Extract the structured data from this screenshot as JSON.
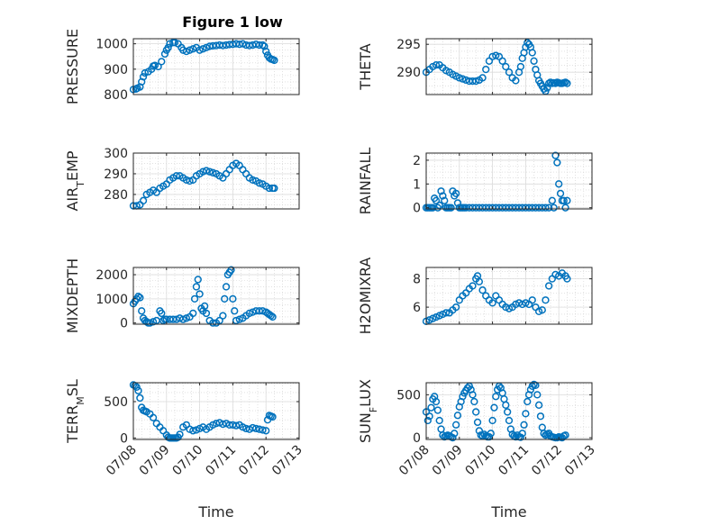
{
  "figure": {
    "title": "Figure 1 low"
  },
  "chart_data": [
    {
      "type": "scatter",
      "ylabel": "PRESSURE",
      "xlabel": "",
      "ylim": [
        800,
        1020
      ],
      "yticks": [
        800,
        900,
        1000
      ],
      "xlim": [
        0,
        5
      ],
      "xticks": [
        0,
        1,
        2,
        3,
        4,
        5
      ],
      "grid": true,
      "color": "#0072BD",
      "marker": "circle-open",
      "x": [
        0.0,
        0.08,
        0.12,
        0.2,
        0.25,
        0.3,
        0.35,
        0.45,
        0.55,
        0.6,
        0.65,
        0.75,
        0.85,
        0.95,
        1.0,
        1.05,
        1.1,
        1.2,
        1.25,
        1.35,
        1.45,
        1.5,
        1.6,
        1.7,
        1.8,
        1.9,
        2.0,
        2.1,
        2.2,
        2.3,
        2.4,
        2.5,
        2.6,
        2.7,
        2.8,
        2.9,
        3.0,
        3.1,
        3.2,
        3.3,
        3.4,
        3.5,
        3.6,
        3.7,
        3.8,
        3.9,
        3.95,
        4.0,
        4.05,
        4.1,
        4.15,
        4.2,
        4.25
      ],
      "y": [
        820,
        822,
        825,
        830,
        850,
        870,
        885,
        890,
        900,
        912,
        915,
        910,
        930,
        960,
        975,
        985,
        1000,
        1005,
        1005,
        1000,
        985,
        975,
        970,
        975,
        980,
        985,
        975,
        980,
        985,
        990,
        992,
        993,
        995,
        993,
        995,
        997,
        998,
        1000,
        998,
        1000,
        995,
        993,
        995,
        998,
        995,
        995,
        990,
        970,
        955,
        945,
        940,
        938,
        935
      ]
    },
    {
      "type": "scatter",
      "ylabel": "THETA",
      "xlabel": "",
      "ylim": [
        286,
        296
      ],
      "yticks": [
        290,
        295
      ],
      "xlim": [
        0,
        5
      ],
      "xticks": [
        0,
        1,
        2,
        3,
        4,
        5
      ],
      "grid": true,
      "color": "#0072BD",
      "marker": "circle-open",
      "x": [
        0.0,
        0.1,
        0.2,
        0.3,
        0.4,
        0.5,
        0.6,
        0.7,
        0.8,
        0.9,
        1.0,
        1.1,
        1.2,
        1.3,
        1.4,
        1.5,
        1.6,
        1.7,
        1.8,
        1.9,
        2.0,
        2.1,
        2.2,
        2.3,
        2.4,
        2.5,
        2.6,
        2.7,
        2.8,
        2.85,
        2.9,
        2.95,
        3.0,
        3.05,
        3.1,
        3.15,
        3.2,
        3.25,
        3.3,
        3.35,
        3.4,
        3.45,
        3.5,
        3.55,
        3.6,
        3.65,
        3.7,
        3.75,
        3.8,
        3.85,
        3.9,
        3.95,
        4.0,
        4.05,
        4.1,
        4.15,
        4.2,
        4.25
      ],
      "y": [
        290,
        290.5,
        291,
        291.3,
        291.3,
        290.8,
        290.3,
        290,
        289.6,
        289.3,
        289,
        288.8,
        288.6,
        288.4,
        288.4,
        288.4,
        288.6,
        289,
        290.5,
        292,
        292.8,
        293,
        292.8,
        292,
        291,
        290,
        289,
        288.5,
        290,
        291,
        292.5,
        293.5,
        294.5,
        295.3,
        295,
        294.5,
        293.5,
        292,
        290.5,
        289.5,
        288.5,
        288,
        287.5,
        287,
        286.6,
        287.2,
        288,
        288.2,
        288,
        288.1,
        288,
        288.2,
        288.1,
        288.0,
        288.0,
        288.1,
        288.2,
        288.0
      ]
    },
    {
      "type": "scatter",
      "ylabel": "AIR_TEMP",
      "xlabel": "",
      "ylim": [
        273,
        300
      ],
      "yticks": [
        280,
        290,
        300
      ],
      "xlim": [
        0,
        5
      ],
      "xticks": [
        0,
        1,
        2,
        3,
        4,
        5
      ],
      "grid": true,
      "color": "#0072BD",
      "marker": "circle-open",
      "x": [
        0.0,
        0.1,
        0.2,
        0.3,
        0.4,
        0.5,
        0.6,
        0.7,
        0.8,
        0.9,
        1.0,
        1.1,
        1.2,
        1.3,
        1.4,
        1.5,
        1.6,
        1.7,
        1.8,
        1.9,
        2.0,
        2.1,
        2.2,
        2.3,
        2.4,
        2.5,
        2.6,
        2.7,
        2.8,
        2.9,
        3.0,
        3.1,
        3.2,
        3.3,
        3.4,
        3.5,
        3.6,
        3.7,
        3.8,
        3.9,
        4.0,
        4.1,
        4.2,
        4.25
      ],
      "y": [
        274.5,
        274.5,
        275,
        277,
        280,
        281,
        282,
        281,
        283,
        284,
        285,
        287,
        288,
        289,
        289,
        288,
        287,
        286.5,
        287,
        289,
        290,
        291,
        291.5,
        291,
        290.5,
        290,
        289,
        288,
        290,
        292,
        294,
        295,
        294,
        292,
        290,
        288,
        287,
        286.5,
        285.5,
        285,
        284,
        283,
        283,
        283
      ]
    },
    {
      "type": "scatter",
      "ylabel": "RAINFALL",
      "xlabel": "",
      "ylim": [
        -0.05,
        2.3
      ],
      "yticks": [
        0,
        1,
        2
      ],
      "xlim": [
        0,
        5
      ],
      "xticks": [
        0,
        1,
        2,
        3,
        4,
        5
      ],
      "grid": true,
      "color": "#0072BD",
      "marker": "circle-open",
      "x": [
        0.0,
        0.05,
        0.1,
        0.15,
        0.2,
        0.25,
        0.3,
        0.35,
        0.4,
        0.45,
        0.5,
        0.55,
        0.6,
        0.65,
        0.7,
        0.75,
        0.8,
        0.85,
        0.9,
        0.95,
        1.0,
        1.05,
        1.1,
        1.15,
        1.2,
        1.3,
        1.4,
        1.5,
        1.6,
        1.7,
        1.8,
        1.9,
        2.0,
        2.1,
        2.2,
        2.3,
        2.4,
        2.5,
        2.6,
        2.7,
        2.8,
        2.9,
        3.0,
        3.1,
        3.2,
        3.3,
        3.4,
        3.5,
        3.6,
        3.7,
        3.8,
        3.85,
        3.9,
        3.95,
        4.0,
        4.05,
        4.1,
        4.15,
        4.2,
        4.25
      ],
      "y": [
        0,
        0,
        0,
        0,
        0,
        0.4,
        0.3,
        0,
        0.1,
        0.7,
        0.5,
        0.3,
        0,
        0,
        0,
        0,
        0.7,
        0.5,
        0.6,
        0.2,
        0,
        0,
        0,
        0,
        0,
        0,
        0,
        0,
        0,
        0,
        0,
        0,
        0,
        0,
        0,
        0,
        0,
        0,
        0,
        0,
        0,
        0,
        0,
        0,
        0,
        0,
        0,
        0,
        0,
        0,
        0.3,
        0,
        2.2,
        1.9,
        1.0,
        0.6,
        0.3,
        0.3,
        0,
        0.3
      ]
    },
    {
      "type": "scatter",
      "ylabel": "MIXDEPTH",
      "xlabel": "",
      "ylim": [
        -50,
        2300
      ],
      "yticks": [
        0,
        1000,
        2000
      ],
      "xlim": [
        0,
        5
      ],
      "xticks": [
        0,
        1,
        2,
        3,
        4,
        5
      ],
      "grid": true,
      "color": "#0072BD",
      "marker": "circle-open",
      "x": [
        0.0,
        0.05,
        0.1,
        0.15,
        0.2,
        0.25,
        0.3,
        0.35,
        0.4,
        0.45,
        0.5,
        0.6,
        0.7,
        0.8,
        0.85,
        0.9,
        0.95,
        1.0,
        1.1,
        1.2,
        1.3,
        1.4,
        1.5,
        1.6,
        1.7,
        1.8,
        1.85,
        1.9,
        1.95,
        2.0,
        2.05,
        2.1,
        2.15,
        2.2,
        2.3,
        2.4,
        2.5,
        2.6,
        2.7,
        2.75,
        2.8,
        2.85,
        2.9,
        2.95,
        3.0,
        3.05,
        3.1,
        3.2,
        3.3,
        3.4,
        3.5,
        3.6,
        3.7,
        3.8,
        3.9,
        4.0,
        4.05,
        4.1,
        4.15,
        4.2
      ],
      "y": [
        800,
        900,
        1000,
        1100,
        1050,
        500,
        200,
        100,
        50,
        0,
        0,
        50,
        100,
        500,
        400,
        100,
        150,
        150,
        150,
        150,
        150,
        200,
        150,
        200,
        250,
        400,
        1000,
        1500,
        1800,
        1200,
        600,
        500,
        700,
        400,
        100,
        0,
        0,
        100,
        300,
        1000,
        1500,
        2000,
        2100,
        2200,
        1000,
        500,
        100,
        150,
        200,
        300,
        400,
        450,
        500,
        500,
        500,
        450,
        400,
        350,
        300,
        250
      ]
    },
    {
      "type": "scatter",
      "ylabel": "H2OMIXRA",
      "xlabel": "",
      "ylim": [
        4.8,
        8.8
      ],
      "yticks": [
        6,
        8
      ],
      "xlim": [
        0,
        5
      ],
      "xticks": [
        0,
        1,
        2,
        3,
        4,
        5
      ],
      "grid": true,
      "color": "#0072BD",
      "marker": "circle-open",
      "x": [
        0.0,
        0.1,
        0.2,
        0.3,
        0.4,
        0.5,
        0.6,
        0.7,
        0.8,
        0.9,
        1.0,
        1.1,
        1.2,
        1.3,
        1.4,
        1.5,
        1.55,
        1.6,
        1.7,
        1.8,
        1.9,
        2.0,
        2.1,
        2.2,
        2.3,
        2.4,
        2.5,
        2.6,
        2.7,
        2.8,
        2.9,
        3.0,
        3.1,
        3.2,
        3.3,
        3.4,
        3.5,
        3.6,
        3.7,
        3.8,
        3.9,
        4.0,
        4.1,
        4.2,
        4.25
      ],
      "y": [
        5.0,
        5.1,
        5.2,
        5.3,
        5.4,
        5.5,
        5.6,
        5.6,
        5.8,
        6.0,
        6.5,
        6.8,
        7.0,
        7.3,
        7.5,
        8.0,
        8.2,
        7.8,
        7.2,
        6.8,
        6.5,
        6.3,
        6.8,
        6.5,
        6.2,
        6.0,
        5.9,
        6.0,
        6.2,
        6.3,
        6.2,
        6.3,
        6.2,
        6.5,
        6.0,
        5.7,
        5.8,
        6.5,
        7.5,
        8.0,
        8.3,
        8.2,
        8.4,
        8.2,
        8.0
      ]
    },
    {
      "type": "scatter",
      "ylabel": "TERR_MSL",
      "xlabel": "Time",
      "ylim": [
        -20,
        760
      ],
      "yticks": [
        0,
        500
      ],
      "xlim": [
        0,
        5
      ],
      "xticks": [
        0,
        1,
        2,
        3,
        4,
        5
      ],
      "xticklabels": [
        "07/08",
        "07/09",
        "07/10",
        "07/11",
        "07/12",
        "07/13"
      ],
      "grid": true,
      "color": "#0072BD",
      "marker": "circle-open",
      "x": [
        0.0,
        0.05,
        0.1,
        0.15,
        0.2,
        0.25,
        0.3,
        0.35,
        0.4,
        0.5,
        0.6,
        0.7,
        0.8,
        0.9,
        1.0,
        1.05,
        1.1,
        1.15,
        1.2,
        1.25,
        1.3,
        1.35,
        1.4,
        1.5,
        1.6,
        1.7,
        1.8,
        1.9,
        2.0,
        2.1,
        2.2,
        2.3,
        2.4,
        2.5,
        2.6,
        2.7,
        2.8,
        2.9,
        3.0,
        3.1,
        3.2,
        3.3,
        3.4,
        3.5,
        3.6,
        3.7,
        3.8,
        3.9,
        4.0,
        4.05,
        4.1,
        4.15,
        4.2
      ],
      "y": [
        730,
        720,
        700,
        650,
        550,
        420,
        380,
        370,
        360,
        330,
        280,
        200,
        150,
        100,
        40,
        10,
        0,
        0,
        0,
        0,
        0,
        10,
        50,
        150,
        180,
        120,
        100,
        110,
        130,
        150,
        120,
        150,
        180,
        200,
        210,
        190,
        200,
        180,
        180,
        170,
        180,
        150,
        130,
        120,
        140,
        130,
        120,
        110,
        100,
        250,
        310,
        300,
        290
      ]
    },
    {
      "type": "scatter",
      "ylabel": "SUN_FLUX",
      "xlabel": "Time",
      "ylim": [
        -20,
        640
      ],
      "yticks": [
        0,
        500
      ],
      "xlim": [
        0,
        5
      ],
      "xticks": [
        0,
        1,
        2,
        3,
        4,
        5
      ],
      "xticklabels": [
        "07/08",
        "07/09",
        "07/10",
        "07/11",
        "07/12",
        "07/13"
      ],
      "grid": true,
      "color": "#0072BD",
      "marker": "circle-open",
      "x": [
        0.0,
        0.05,
        0.1,
        0.15,
        0.2,
        0.25,
        0.3,
        0.35,
        0.4,
        0.45,
        0.5,
        0.55,
        0.6,
        0.65,
        0.7,
        0.75,
        0.8,
        0.85,
        0.9,
        0.95,
        1.0,
        1.05,
        1.1,
        1.15,
        1.2,
        1.25,
        1.3,
        1.35,
        1.4,
        1.45,
        1.5,
        1.55,
        1.6,
        1.65,
        1.7,
        1.75,
        1.8,
        1.85,
        1.9,
        1.95,
        2.0,
        2.05,
        2.1,
        2.15,
        2.2,
        2.25,
        2.3,
        2.35,
        2.4,
        2.45,
        2.5,
        2.55,
        2.6,
        2.65,
        2.7,
        2.75,
        2.8,
        2.85,
        2.9,
        2.95,
        3.0,
        3.05,
        3.1,
        3.15,
        3.2,
        3.25,
        3.3,
        3.35,
        3.4,
        3.45,
        3.5,
        3.55,
        3.6,
        3.65,
        3.7,
        3.75,
        3.8,
        3.85,
        3.9,
        3.95,
        4.0,
        4.05,
        4.1,
        4.15,
        4.2
      ],
      "y": [
        300,
        200,
        250,
        350,
        450,
        480,
        420,
        320,
        200,
        100,
        30,
        10,
        20,
        30,
        20,
        10,
        0,
        50,
        150,
        260,
        360,
        420,
        480,
        520,
        550,
        580,
        600,
        560,
        500,
        420,
        300,
        180,
        80,
        30,
        20,
        40,
        20,
        10,
        10,
        50,
        200,
        350,
        480,
        560,
        600,
        580,
        520,
        450,
        380,
        300,
        200,
        100,
        40,
        20,
        10,
        30,
        10,
        5,
        50,
        150,
        280,
        420,
        500,
        560,
        600,
        620,
        610,
        500,
        380,
        250,
        120,
        50,
        30,
        40,
        50,
        20,
        10,
        5,
        0,
        0,
        10,
        5,
        0,
        20,
        30
      ]
    }
  ]
}
